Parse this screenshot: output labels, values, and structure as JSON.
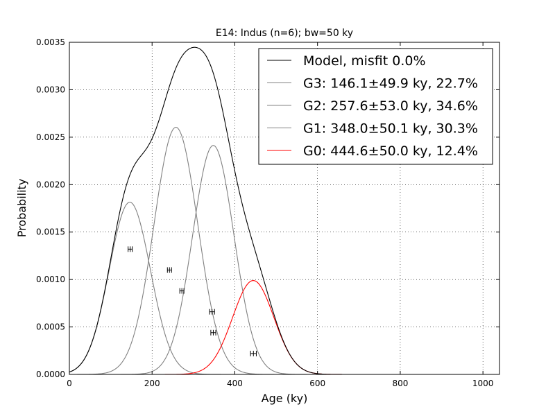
{
  "chart_data": {
    "type": "line",
    "title": "E14: Indus (n=6); bw=50 ky",
    "xlabel": "Age (ky)",
    "ylabel": "Probability",
    "xlim": [
      0,
      1040
    ],
    "ylim": [
      0,
      0.0035
    ],
    "xticks": [
      0,
      200,
      400,
      600,
      800,
      1000
    ],
    "xtick_labels": [
      "0",
      "200",
      "400",
      "600",
      "800",
      "1000"
    ],
    "yticks": [
      0,
      0.0005,
      0.001,
      0.0015,
      0.002,
      0.0025,
      0.003,
      0.0035
    ],
    "ytick_labels": [
      "0.0000",
      "0.0005",
      "0.0010",
      "0.0015",
      "0.0020",
      "0.0025",
      "0.0030",
      "0.0035"
    ],
    "grid": true,
    "legend_position": "top-right",
    "series": [
      {
        "name": "Model, misfit 0.0%",
        "color": "#000000",
        "role": "model"
      },
      {
        "name": "G3: 146.1±49.9 ky, 22.7%",
        "mean": 146.1,
        "sd": 49.9,
        "weight": 0.227,
        "color": "#808080"
      },
      {
        "name": "G2: 257.6±53.0 ky, 34.6%",
        "mean": 257.6,
        "sd": 53.0,
        "weight": 0.346,
        "color": "#808080"
      },
      {
        "name": "G1: 348.0±50.1 ky, 30.3%",
        "mean": 348.0,
        "sd": 50.1,
        "weight": 0.303,
        "color": "#808080"
      },
      {
        "name": "G0: 444.6±50.0 ky, 12.4%",
        "mean": 444.6,
        "sd": 50.0,
        "weight": 0.124,
        "color": "#ff0000"
      }
    ],
    "data_points": [
      {
        "x": 147,
        "y": 0.00132,
        "xerr": 5
      },
      {
        "x": 242,
        "y": 0.0011,
        "xerr": 5
      },
      {
        "x": 272,
        "y": 0.00088,
        "xerr": 5
      },
      {
        "x": 345,
        "y": 0.00066,
        "xerr": 6
      },
      {
        "x": 348,
        "y": 0.00044,
        "xerr": 6
      },
      {
        "x": 445,
        "y": 0.00022,
        "xerr": 7
      }
    ]
  }
}
